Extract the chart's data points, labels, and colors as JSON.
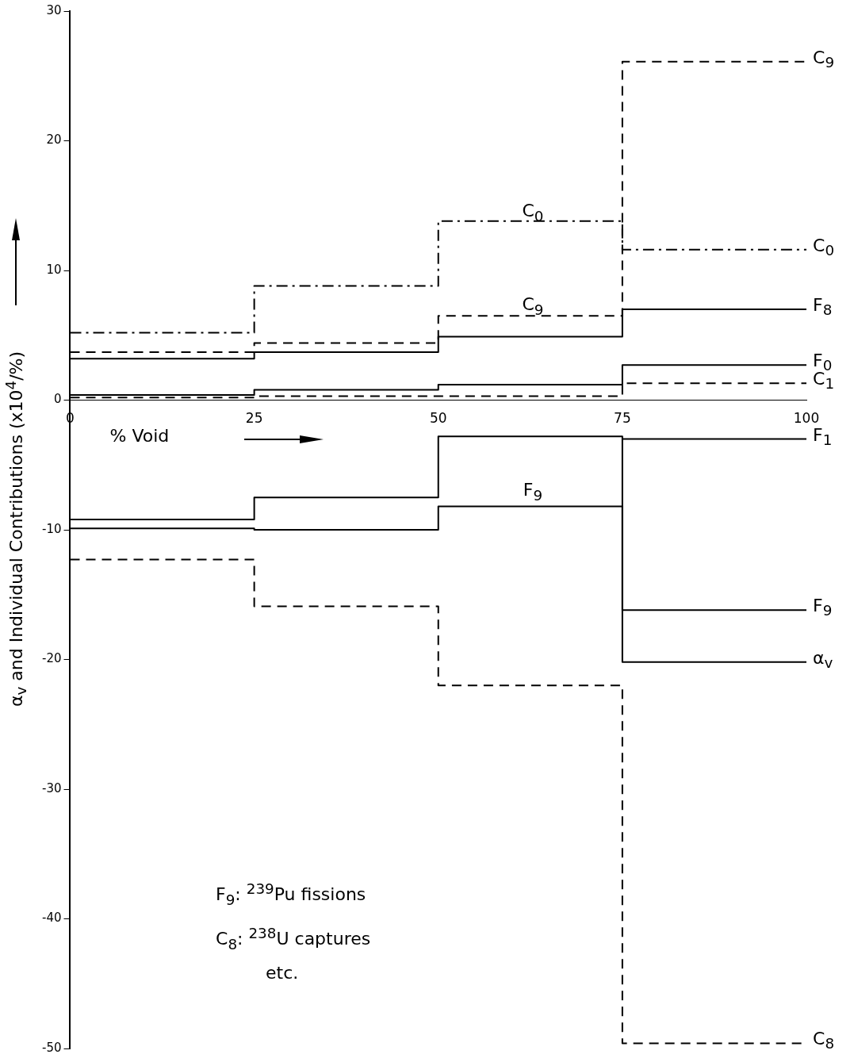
{
  "chart_data": {
    "type": "step",
    "xlabel": "% Void",
    "ylabel": "α$_{v}$ and Individual Contributions (x10$^{4}$/%)",
    "x": [
      0,
      25,
      50,
      75,
      100
    ],
    "xlim": [
      0,
      100
    ],
    "xticks": [
      0,
      25,
      50,
      75,
      100
    ],
    "ylim": [
      -50,
      30
    ],
    "yticks": [
      -50,
      -40,
      -30,
      -20,
      -10,
      0,
      10,
      20,
      30
    ],
    "grid": false,
    "legend": false,
    "series": [
      {
        "name": "C$_{9}$",
        "color": "#000000",
        "line_style": "dashed",
        "values": [
          3.7,
          4.4,
          6.5,
          26.1,
          26.1
        ]
      },
      {
        "name": "C$_{0}$",
        "color": "#000000",
        "line_style": "dashdot",
        "values": [
          5.2,
          8.8,
          13.8,
          11.6,
          11.6
        ]
      },
      {
        "name": "F$_{8}$",
        "color": "#000000",
        "line_style": "solid",
        "values": [
          3.2,
          3.7,
          4.9,
          7.0,
          7.0
        ]
      },
      {
        "name": "F$_{0}$",
        "color": "#000000",
        "line_style": "solid",
        "values": [
          0.4,
          0.8,
          1.2,
          2.7,
          2.7
        ]
      },
      {
        "name": "C$_{1}$",
        "color": "#000000",
        "line_style": "dashed",
        "values": [
          0.2,
          0.3,
          0.3,
          1.3,
          1.3
        ]
      },
      {
        "name": "F$_{1}$",
        "color": "#000000",
        "line_style": "solid",
        "values": [
          null,
          null,
          null,
          -3.0,
          -3.0
        ]
      },
      {
        "name": "F$_{9}$",
        "color": "#000000",
        "line_style": "solid",
        "values": [
          -9.9,
          -10.0,
          -8.2,
          -16.2,
          -16.2
        ]
      },
      {
        "name": "α$_{v}$",
        "color": "#000000",
        "line_style": "solid",
        "values": [
          -9.2,
          -7.5,
          -2.8,
          -20.2,
          -20.2
        ]
      },
      {
        "name": "C$_{8}$",
        "color": "#000000",
        "line_style": "dashed",
        "values": [
          -12.3,
          -15.9,
          -22.0,
          -49.6,
          -49.6
        ]
      }
    ],
    "annotations": [
      "C$_{0}$",
      "C$_{9}$",
      "F$_{9}$",
      "F$_{9}$:  $^{239}$Pu fissions",
      "C$_{8}$:  $^{238}$U  captures",
      "etc."
    ]
  }
}
